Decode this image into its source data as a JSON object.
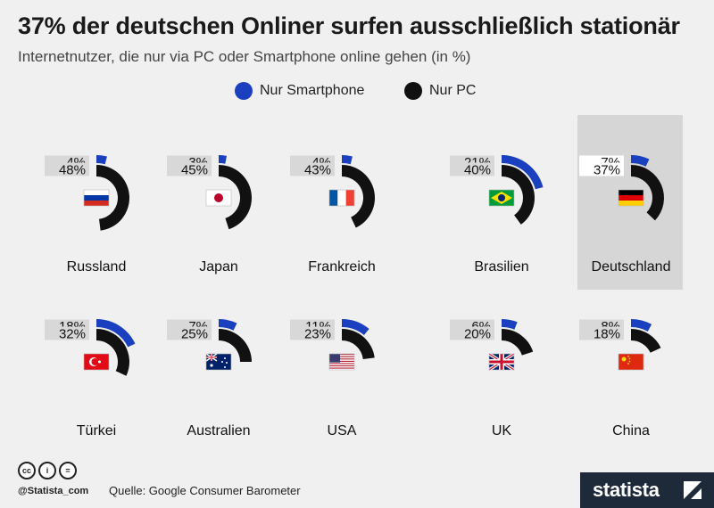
{
  "title": "37% der deutschen Onliner surfen ausschließlich stationär",
  "subtitle": "Internetnutzer, die nur via PC oder Smartphone online gehen (in %)",
  "legend": [
    {
      "label": "Nur Smartphone",
      "color": "#1a3fbf"
    },
    {
      "label": "Nur PC",
      "color": "#111111"
    }
  ],
  "colors": {
    "smartphone": "#1a3fbf",
    "pc": "#111111",
    "label_bg": "#d8d8d8",
    "highlight_bg": "#d6d6d6"
  },
  "chart_data": {
    "type": "radial-bar",
    "series": [
      {
        "name": "Nur Smartphone",
        "color": "#1a3fbf"
      },
      {
        "name": "Nur PC",
        "color": "#111111"
      }
    ],
    "items": [
      {
        "country": "Russland",
        "flag": "russia",
        "smartphone": 4,
        "pc": 48,
        "highlight": false
      },
      {
        "country": "Japan",
        "flag": "japan",
        "smartphone": 3,
        "pc": 45,
        "highlight": false
      },
      {
        "country": "Frankreich",
        "flag": "france",
        "smartphone": 4,
        "pc": 43,
        "highlight": false
      },
      {
        "country": "Brasilien",
        "flag": "brazil",
        "smartphone": 21,
        "pc": 40,
        "highlight": false
      },
      {
        "country": "Deutschland",
        "flag": "germany",
        "smartphone": 7,
        "pc": 37,
        "highlight": true
      },
      {
        "country": "Türkei",
        "flag": "turkey",
        "smartphone": 18,
        "pc": 32,
        "highlight": false
      },
      {
        "country": "Australien",
        "flag": "australia",
        "smartphone": 7,
        "pc": 25,
        "highlight": false
      },
      {
        "country": "USA",
        "flag": "usa",
        "smartphone": 11,
        "pc": 23,
        "highlight": false
      },
      {
        "country": "UK",
        "flag": "uk",
        "smartphone": 6,
        "pc": 20,
        "highlight": false
      },
      {
        "country": "China",
        "flag": "china",
        "smartphone": 8,
        "pc": 18,
        "highlight": false
      }
    ],
    "unit": "%"
  },
  "footer": {
    "source": "Quelle: Google Consumer Barometer",
    "handle": "@Statista_com",
    "brand": "statista"
  }
}
